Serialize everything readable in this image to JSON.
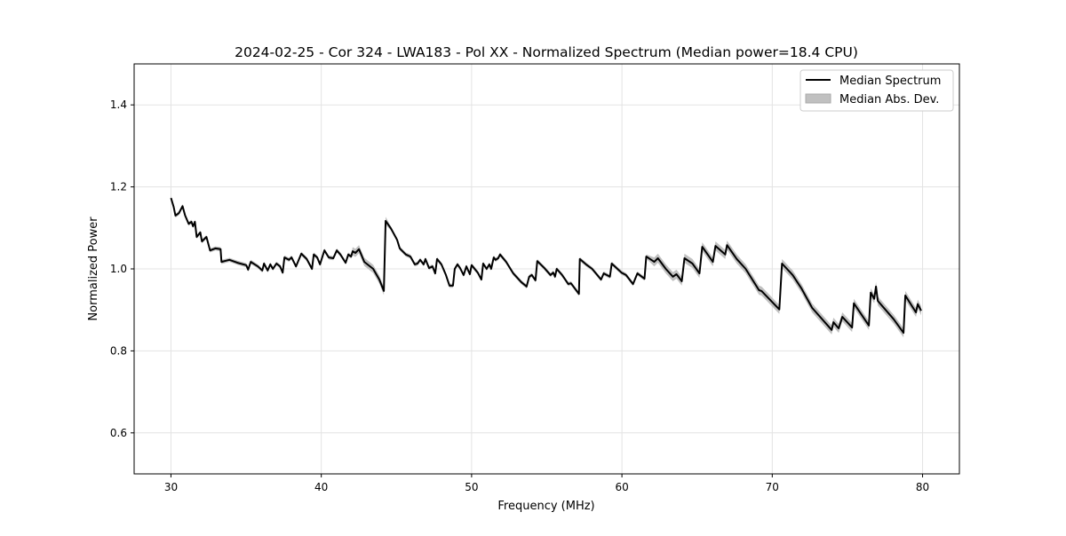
{
  "chart_data": {
    "type": "line",
    "title": "2024-02-25 - Cor 324 - LWA183 - Pol XX - Normalized Spectrum (Median power=18.4 CPU)",
    "xlabel": "Frequency (MHz)",
    "ylabel": "Normalized Power",
    "xlim": [
      27.55,
      82.45
    ],
    "ylim": [
      0.5,
      1.5
    ],
    "xticks": [
      30,
      40,
      50,
      60,
      70,
      80
    ],
    "xtick_labels": [
      "30",
      "40",
      "50",
      "60",
      "70",
      "80"
    ],
    "yticks": [
      0.6,
      0.8,
      1.0,
      1.2,
      1.4
    ],
    "ytick_labels": [
      "0.6",
      "0.8",
      "1.0",
      "1.2",
      "1.4"
    ],
    "grid": true,
    "legend_position": "top-right",
    "legend": [
      "Median Spectrum",
      "Median Abs. Dev."
    ],
    "colors": {
      "line": "#000000",
      "band": "#c0c0c0"
    },
    "mad_half_width_by_range": [
      [
        30,
        42,
        0.005
      ],
      [
        42,
        44.5,
        0.01
      ],
      [
        44.5,
        62,
        0.005
      ],
      [
        62,
        80.1,
        0.011
      ]
    ],
    "series": [
      {
        "name": "Median Spectrum",
        "x": [
          30.0,
          30.18,
          30.3,
          30.53,
          30.77,
          30.94,
          31.18,
          31.36,
          31.47,
          31.59,
          31.71,
          31.95,
          32.06,
          32.36,
          32.6,
          32.95,
          33.3,
          33.36,
          33.89,
          34.42,
          35.01,
          35.13,
          35.31,
          35.78,
          36.08,
          36.19,
          36.43,
          36.61,
          36.78,
          37.02,
          37.26,
          37.43,
          37.55,
          37.85,
          38.02,
          38.32,
          38.67,
          39.03,
          39.38,
          39.5,
          39.73,
          39.91,
          40.21,
          40.5,
          40.8,
          41.03,
          41.27,
          41.62,
          41.8,
          41.98,
          42.09,
          42.27,
          42.51,
          42.86,
          43.45,
          43.86,
          44.16,
          44.28,
          44.63,
          45.04,
          45.22,
          45.63,
          45.93,
          46.22,
          46.4,
          46.58,
          46.81,
          46.93,
          47.17,
          47.4,
          47.58,
          47.7,
          47.99,
          48.29,
          48.53,
          48.76,
          48.88,
          49.06,
          49.23,
          49.47,
          49.65,
          49.88,
          50.0,
          50.41,
          50.65,
          50.77,
          51.0,
          51.18,
          51.3,
          51.47,
          51.59,
          51.77,
          51.89,
          52.3,
          52.77,
          53.3,
          53.66,
          53.83,
          54.01,
          54.25,
          54.37,
          54.84,
          55.25,
          55.43,
          55.55,
          55.66,
          56.02,
          56.43,
          56.61,
          57.14,
          57.2,
          57.61,
          58.02,
          58.61,
          58.79,
          59.2,
          59.32,
          59.97,
          60.27,
          60.74,
          61.03,
          61.5,
          61.62,
          62.15,
          62.39,
          62.92,
          63.39,
          63.63,
          63.98,
          64.16,
          64.69,
          65.16,
          65.34,
          66.05,
          66.22,
          66.87,
          66.99,
          67.64,
          68.23,
          69.12,
          69.29,
          70.47,
          70.65,
          71.36,
          71.95,
          72.65,
          73.95,
          74.07,
          74.42,
          74.66,
          75.31,
          75.43,
          76.43,
          76.55,
          76.78,
          76.9,
          77.02,
          78.08,
          78.73,
          78.85,
          79.56,
          79.68,
          79.91
        ],
        "y": [
          1.173,
          1.151,
          1.13,
          1.136,
          1.153,
          1.13,
          1.11,
          1.115,
          1.104,
          1.115,
          1.078,
          1.089,
          1.067,
          1.078,
          1.045,
          1.05,
          1.048,
          1.017,
          1.022,
          1.015,
          1.009,
          0.998,
          1.017,
          1.006,
          0.996,
          1.013,
          0.996,
          1.011,
          1.0,
          1.013,
          1.006,
          0.991,
          1.028,
          1.022,
          1.028,
          1.006,
          1.037,
          1.024,
          1.0,
          1.035,
          1.028,
          1.011,
          1.045,
          1.028,
          1.026,
          1.045,
          1.035,
          1.015,
          1.035,
          1.03,
          1.043,
          1.039,
          1.048,
          1.017,
          1.0,
          0.974,
          0.946,
          1.117,
          1.099,
          1.071,
          1.05,
          1.035,
          1.03,
          1.011,
          1.013,
          1.022,
          1.011,
          1.024,
          1.002,
          1.006,
          0.989,
          1.024,
          1.011,
          0.985,
          0.959,
          0.959,
          1.0,
          1.011,
          1.002,
          0.985,
          1.006,
          0.987,
          1.009,
          0.991,
          0.974,
          1.013,
          1.0,
          1.011,
          1.0,
          1.028,
          1.022,
          1.026,
          1.035,
          1.017,
          0.989,
          0.968,
          0.957,
          0.981,
          0.985,
          0.972,
          1.019,
          1.002,
          0.985,
          0.991,
          0.981,
          1.0,
          0.985,
          0.963,
          0.965,
          0.939,
          1.024,
          1.011,
          1.0,
          0.974,
          0.989,
          0.981,
          1.013,
          0.991,
          0.985,
          0.963,
          0.989,
          0.976,
          1.03,
          1.017,
          1.026,
          1.0,
          0.981,
          0.987,
          0.97,
          1.026,
          1.013,
          0.989,
          1.054,
          1.017,
          1.056,
          1.035,
          1.058,
          1.024,
          1.0,
          0.948,
          0.946,
          0.901,
          1.013,
          0.985,
          0.952,
          0.905,
          0.851,
          0.87,
          0.855,
          0.883,
          0.857,
          0.916,
          0.862,
          0.942,
          0.927,
          0.957,
          0.922,
          0.877,
          0.844,
          0.935,
          0.894,
          0.914,
          0.898
        ]
      }
    ]
  }
}
